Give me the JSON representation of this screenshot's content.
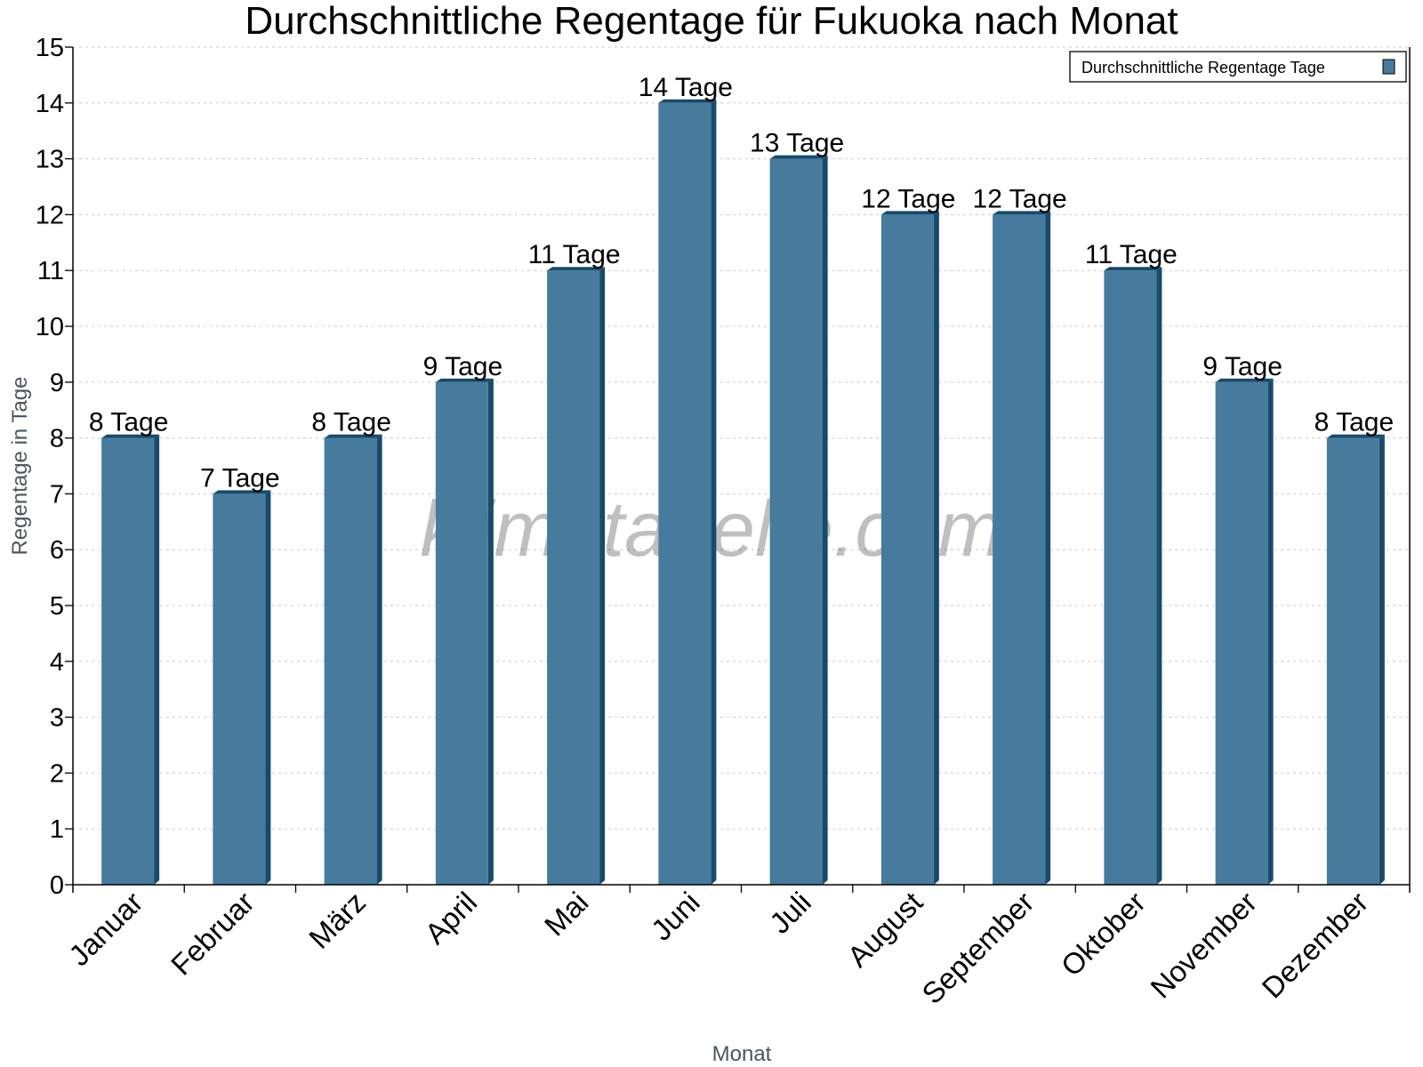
{
  "chart_data": {
    "type": "bar",
    "title": "Durchschnittliche Regentage für Fukuoka nach Monat",
    "xlabel": "Monat",
    "ylabel": "Regentage in Tage",
    "ylim": [
      0,
      15
    ],
    "yticks": [
      0,
      1,
      2,
      3,
      4,
      5,
      6,
      7,
      8,
      9,
      10,
      11,
      12,
      13,
      14,
      15
    ],
    "grid": true,
    "legend_position": "top-right",
    "categories": [
      "Januar",
      "Februar",
      "März",
      "April",
      "Mai",
      "Juni",
      "Juli",
      "August",
      "September",
      "Oktober",
      "November",
      "Dezember"
    ],
    "series": [
      {
        "name": "Durchschnittliche Regentage Tage",
        "values": [
          8,
          7,
          8,
          9,
          11,
          14,
          13,
          12,
          12,
          11,
          9,
          8
        ],
        "data_labels": [
          "8 Tage",
          "7 Tage",
          "8 Tage",
          "9 Tage",
          "11 Tage",
          "14 Tage",
          "13 Tage",
          "12 Tage",
          "12 Tage",
          "11 Tage",
          "9 Tage",
          "8 Tage"
        ],
        "color": "#467b9d",
        "shade_color": "#174a6b"
      }
    ],
    "watermark": "klimatabelle.com"
  }
}
